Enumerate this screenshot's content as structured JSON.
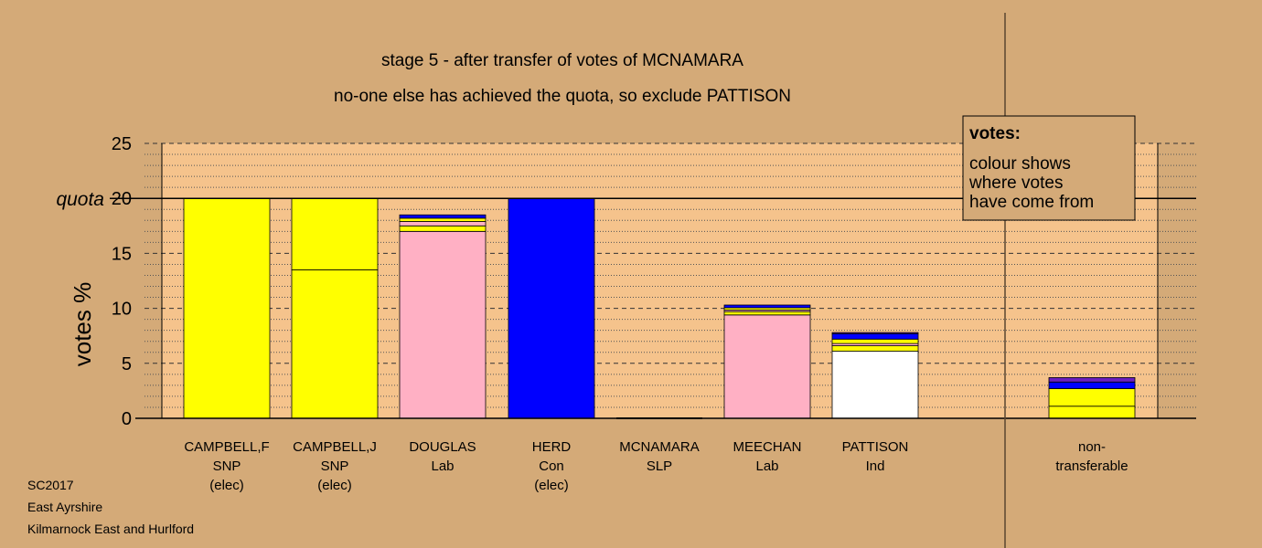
{
  "chart_data": {
    "type": "bar",
    "title": "stage 5 - after transfer of votes of MCNAMARA",
    "subtitle": "no-one else has achieved the quota, so exclude PATTISON",
    "ylabel": "votes %",
    "ylim": [
      0,
      25
    ],
    "yticks": [
      "0",
      "5",
      "10",
      "15",
      "20",
      "25"
    ],
    "quota_value": 20,
    "quota_label": "quota",
    "grid": true,
    "colors": {
      "snp": "#ffff00",
      "lab": "#ffb0c4",
      "con": "#0000ff",
      "ind": "#ffffff",
      "other": "#6a1fbf",
      "plot_bg": "#f5c38c",
      "background": "#d4aa78"
    },
    "candidates": [
      {
        "name": "CAMPBELL,F",
        "party": "SNP",
        "status": "(elec)",
        "segments": [
          {
            "from": "snp",
            "value": 20.0
          }
        ]
      },
      {
        "name": "CAMPBELL,J",
        "party": "SNP",
        "status": "(elec)",
        "segments": [
          {
            "from": "snp",
            "value": 13.5
          },
          {
            "from": "snp",
            "value": 6.5
          }
        ]
      },
      {
        "name": "DOUGLAS",
        "party": "Lab",
        "status": "",
        "segments": [
          {
            "from": "lab",
            "value": 17.0
          },
          {
            "from": "snp",
            "value": 0.5
          },
          {
            "from": "lab",
            "value": 0.4
          },
          {
            "from": "snp",
            "value": 0.3
          },
          {
            "from": "con",
            "value": 0.3
          }
        ]
      },
      {
        "name": "HERD",
        "party": "Con",
        "status": "(elec)",
        "segments": [
          {
            "from": "con",
            "value": 20.0
          }
        ]
      },
      {
        "name": "MCNAMARA",
        "party": "SLP",
        "status": "",
        "segments": []
      },
      {
        "name": "MEECHAN",
        "party": "Lab",
        "status": "",
        "segments": [
          {
            "from": "lab",
            "value": 9.4
          },
          {
            "from": "snp",
            "value": 0.3
          },
          {
            "from": "lab",
            "value": 0.15
          },
          {
            "from": "snp",
            "value": 0.2
          },
          {
            "from": "con",
            "value": 0.25
          }
        ]
      },
      {
        "name": "PATTISON",
        "party": "Ind",
        "status": "",
        "segments": [
          {
            "from": "ind",
            "value": 6.1
          },
          {
            "from": "snp",
            "value": 0.5
          },
          {
            "from": "lab",
            "value": 0.2
          },
          {
            "from": "snp",
            "value": 0.4
          },
          {
            "from": "con",
            "value": 0.5
          },
          {
            "from": "other",
            "value": 0.1
          }
        ]
      }
    ],
    "non_transferable": {
      "label_line1": "non-",
      "label_line2": "transferable",
      "segments": [
        {
          "from": "snp",
          "value": 1.1
        },
        {
          "from": "snp",
          "value": 1.6
        },
        {
          "from": "con",
          "value": 0.6
        },
        {
          "from": "other",
          "value": 0.4
        }
      ]
    },
    "legend": {
      "title": "votes:",
      "lines": [
        "colour shows",
        "where votes",
        "have come from"
      ]
    }
  },
  "footer": {
    "line1": "SC2017",
    "line2": "East Ayrshire",
    "line3": "Kilmarnock East and Hurlford"
  }
}
